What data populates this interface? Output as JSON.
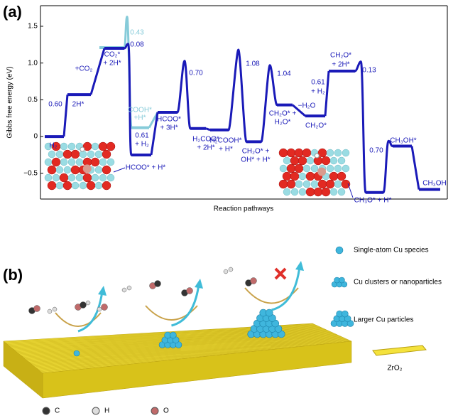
{
  "panel_a_label": "(a)",
  "chart_data": {
    "type": "energy-profile",
    "ylabel": "Gibbs free energy (eV)",
    "xlabel": "Reaction pathways",
    "ylim": [
      -0.85,
      1.78
    ],
    "yticks": [
      {
        "value": 1.5,
        "label": "1.5"
      },
      {
        "value": 1,
        "label": "1.0"
      },
      {
        "value": 0.5,
        "label": "0.5"
      },
      0,
      {
        "value": -0.5,
        "label": "−0.5"
      }
    ],
    "color": "#1a1ab8",
    "values": [
      0,
      0.57,
      1.2,
      -0.25,
      0.33,
      0.11,
      0.09,
      -0.07,
      0.43,
      0.28,
      0.89,
      -0.76,
      -0.13,
      -0.72
    ],
    "ts": [
      null,
      null,
      1.26,
      null,
      1.03,
      null,
      1.18,
      0.97,
      null,
      null,
      1.02,
      -0.06,
      null
    ],
    "alt": {
      "color": "#86cbd9",
      "values": [
        0.12
      ],
      "ts": [
        1.63
      ]
    },
    "annotations": [
      "0.60",
      "2H*",
      "+CO₂",
      "CO₂*",
      "+ 2H*",
      "0.43",
      "0.08",
      "COOH*",
      "+H*",
      "0.61",
      "+ H₂",
      "HCOO*",
      "+ 3H*",
      "0.70",
      "H₂COO*",
      "+ 2H*",
      "H₂COOH*",
      "+ H*",
      "1.08",
      "CH₂O* +",
      "OH* + H*",
      "1.04",
      "CH₂O* +",
      "H₂O*",
      "−H₂O",
      "CH₂O*",
      "0.61",
      "+ H₂",
      "CH₂O*",
      "+ 2H*",
      "0.13",
      "0.70",
      "CH₃OH*",
      "CH₃OH",
      "H₂",
      "HCOO* + H*",
      "CH₃O* + H*"
    ]
  },
  "panel_b": {
    "label": "(b)",
    "legend": [
      "Single-atom Cu species",
      "Cu clusters or nanoparticles",
      "Larger Cu particles",
      "ZrO₂"
    ],
    "atoms": [
      "C",
      "H",
      "O"
    ]
  }
}
